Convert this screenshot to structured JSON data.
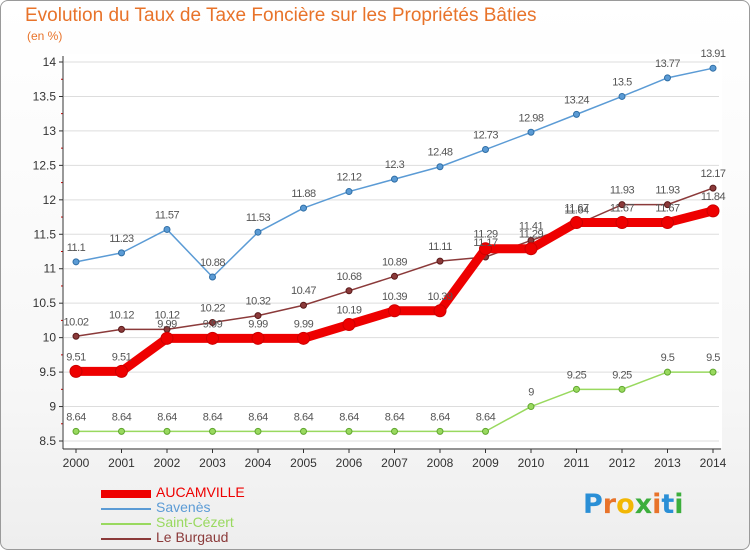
{
  "title": "Evolution du Taux de Taxe Foncière sur les Propriétés Bâties",
  "unit": "(en %)",
  "logo": {
    "text": "Proxiti",
    "colors": [
      "#2a8fd6",
      "#e8732a",
      "#f2b705",
      "#3cae3c",
      "#e8732a",
      "#2a8fd6",
      "#3cae3c"
    ]
  },
  "chart_data": {
    "type": "line",
    "title": "Evolution du Taux de Taxe Foncière sur les Propriétés Bâties",
    "ylabel": "(en %)",
    "ylim": [
      8.5,
      14
    ],
    "yticks": [
      "8.5",
      "9",
      "9.5",
      "10",
      "10.5",
      "11",
      "11.5",
      "12",
      "12.5",
      "13",
      "13.5",
      "14"
    ],
    "x": [
      "2000",
      "2001",
      "2002",
      "2003",
      "2004",
      "2005",
      "2006",
      "2007",
      "2008",
      "2009",
      "2010",
      "2011",
      "2012",
      "2013",
      "2014"
    ],
    "legend_position": "bottom-left",
    "series": [
      {
        "name": "AUCAMVILLE",
        "color": "#ee0000",
        "values": [
          9.51,
          9.51,
          9.99,
          9.99,
          9.99,
          9.99,
          10.19,
          10.39,
          10.39,
          11.29,
          11.29,
          11.67,
          11.67,
          11.67,
          11.84
        ],
        "labels": [
          "9.51",
          "9.51",
          "9.99",
          "9.99",
          "9.99",
          "9.99",
          "10.19",
          "10.39",
          "10.39",
          "11.29",
          "11.29",
          "11.67",
          "11.67",
          "11.67",
          "11.84"
        ]
      },
      {
        "name": "Savenès",
        "color": "#5b9bd5",
        "values": [
          11.1,
          11.23,
          11.57,
          10.88,
          11.53,
          11.88,
          12.12,
          12.3,
          12.48,
          12.73,
          12.98,
          13.24,
          13.5,
          13.77,
          13.91
        ],
        "labels": [
          "11.1",
          "11.23",
          "11.57",
          "10.88",
          "11.53",
          "11.88",
          "12.12",
          "12.3",
          "12.48",
          "12.73",
          "12.98",
          "13.24",
          "13.5",
          "13.77",
          "13.91"
        ]
      },
      {
        "name": "Saint-Cézert",
        "color": "#99d95f",
        "values": [
          8.64,
          8.64,
          8.64,
          8.64,
          8.64,
          8.64,
          8.64,
          8.64,
          8.64,
          8.64,
          9,
          9.25,
          9.25,
          9.5,
          9.5
        ],
        "labels": [
          "8.64",
          "8.64",
          "8.64",
          "8.64",
          "8.64",
          "8.64",
          "8.64",
          "8.64",
          "8.64",
          "8.64",
          "9",
          "9.25",
          "9.25",
          "9.5",
          "9.5"
        ]
      },
      {
        "name": "Le Burgaud",
        "color": "#8b3a3a",
        "values": [
          10.02,
          10.12,
          10.12,
          10.22,
          10.32,
          10.47,
          10.68,
          10.89,
          11.11,
          11.17,
          11.41,
          11.64,
          11.93,
          11.93,
          12.17
        ],
        "labels": [
          "10.02",
          "10.12",
          "10.12",
          "10.22",
          "10.32",
          "10.47",
          "10.68",
          "10.89",
          "11.11",
          "11.17",
          "11.41",
          "11.64",
          "11.93",
          "11.93",
          "12.17"
        ]
      }
    ]
  }
}
